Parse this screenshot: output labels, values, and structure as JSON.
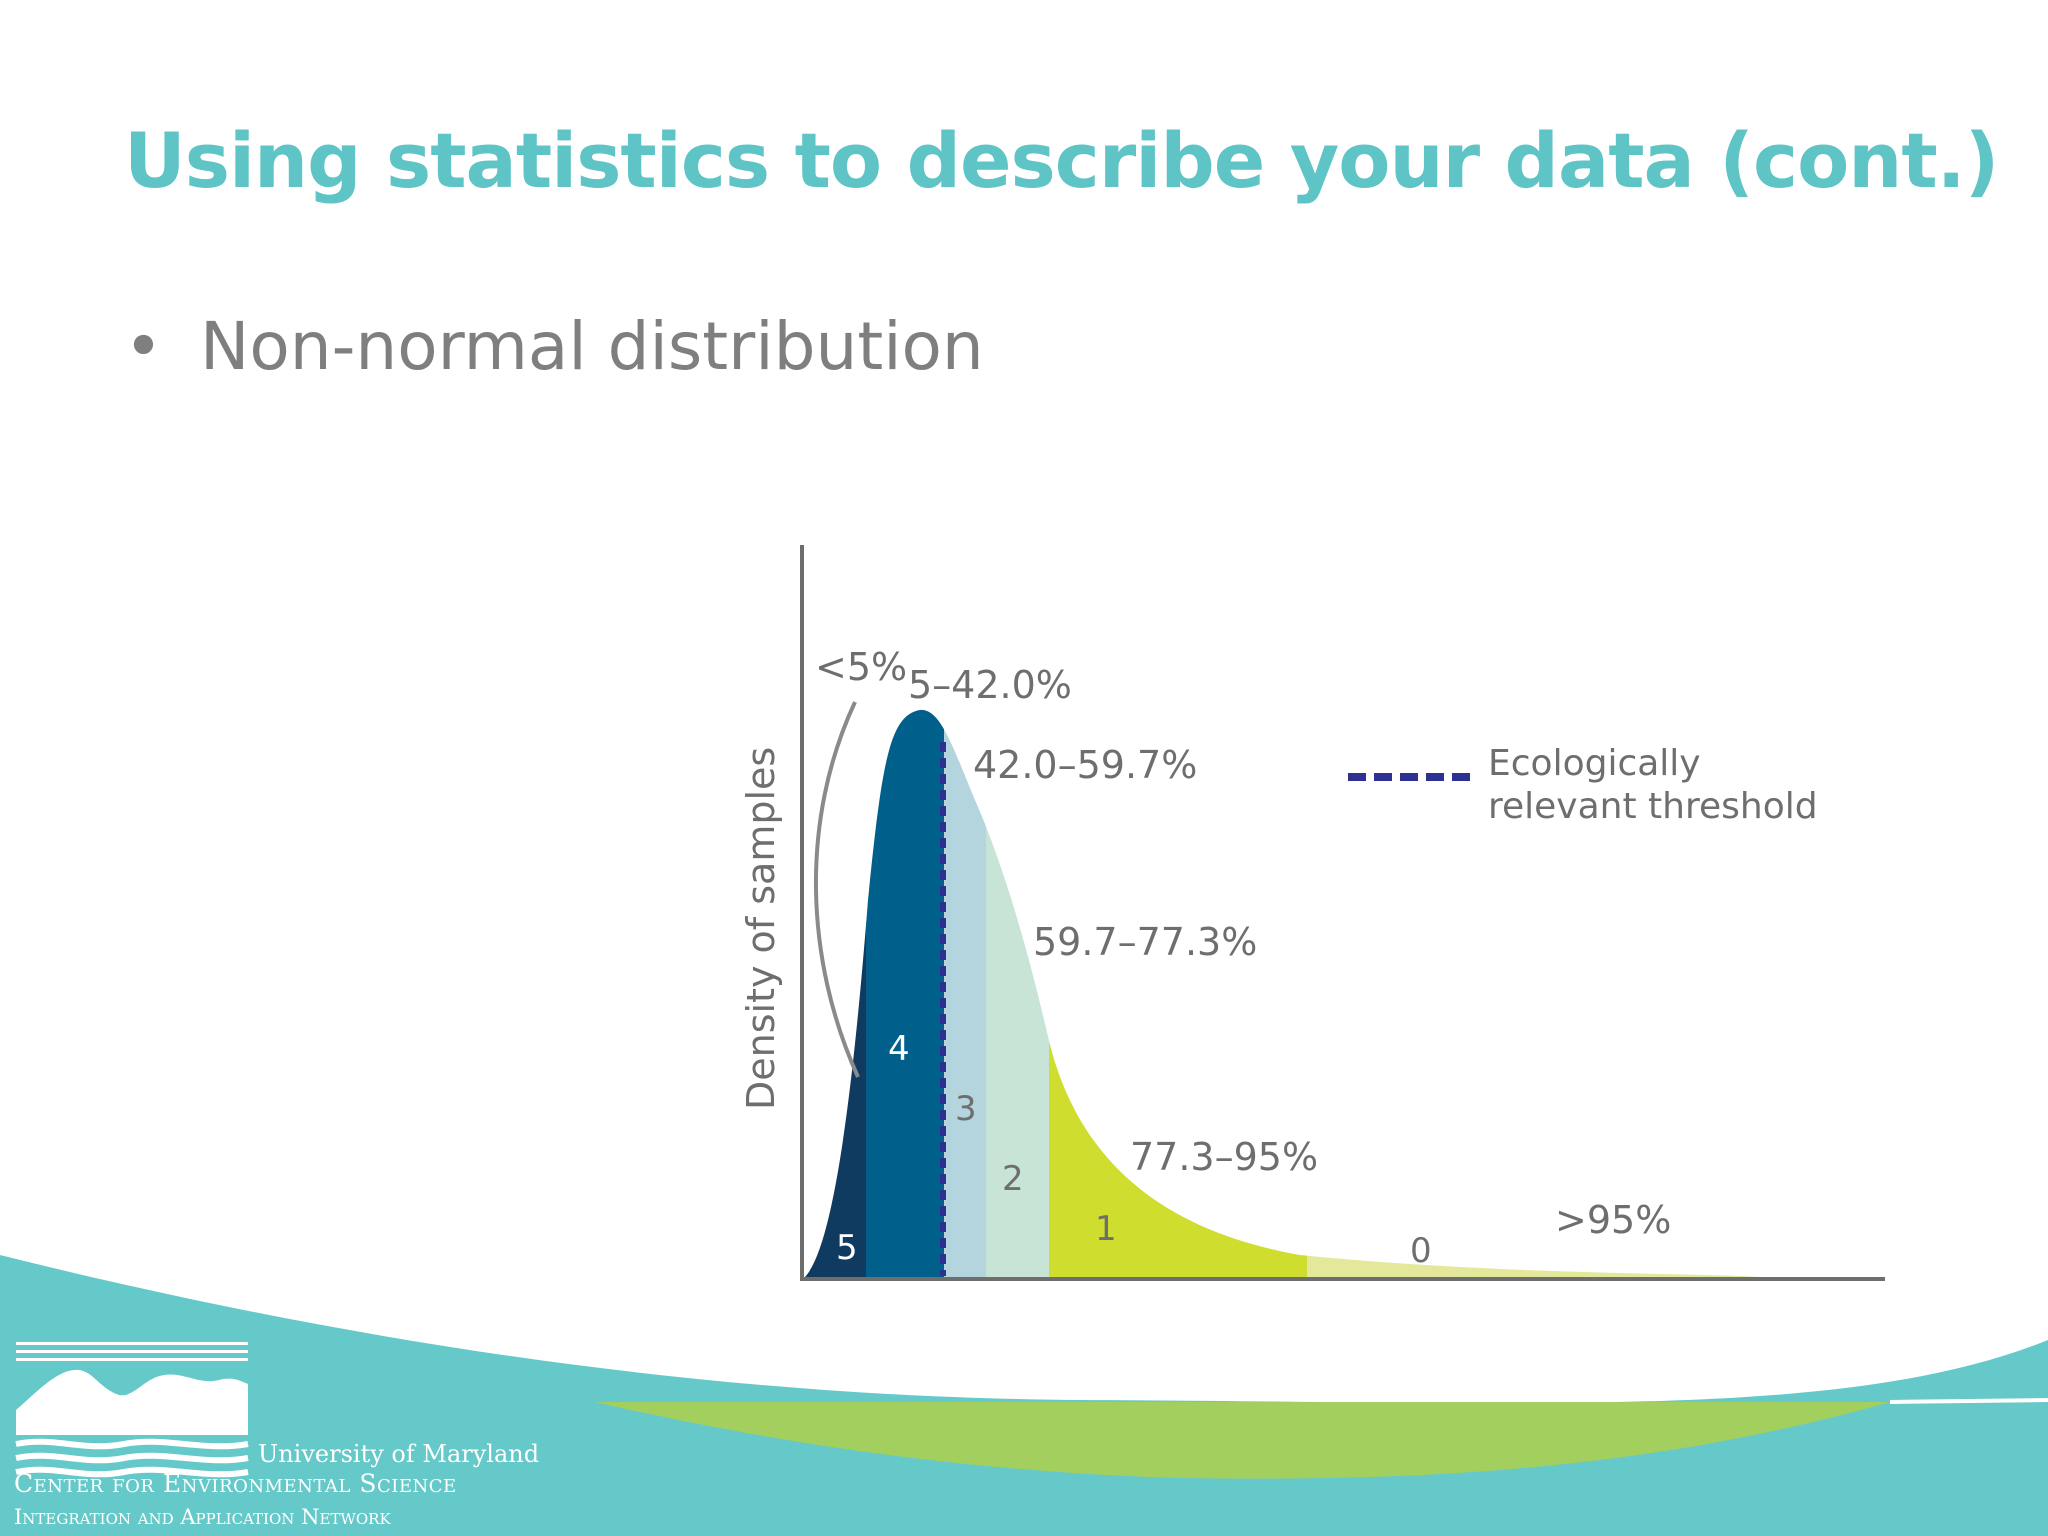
{
  "slide": {
    "title": "Using statistics to describe your data (cont.)",
    "bullet_marker": "•",
    "bullet": "Non-normal distribution"
  },
  "diagram": {
    "y_axis_label": "Density of samples",
    "range_labels": [
      "<5%",
      "5–42.0%",
      "42.0–59.7%",
      "59.7–77.3%",
      "77.3–95%",
      ">95%"
    ],
    "score_labels": [
      "5",
      "4",
      "3",
      "2",
      "1",
      "0"
    ],
    "legend": {
      "line_1": "Ecologically",
      "line_2": "relevant threshold",
      "line_color": "#2e3192"
    },
    "band_colors": [
      "#0f3b61",
      "#005f8b",
      "#b4d4de",
      "#c8e4d6",
      "#cedd2e",
      "#e4e89a"
    ]
  },
  "logo": {
    "line_1": "University of Maryland",
    "line_2": "Center for Environmental Science",
    "line_3": "Integration and Application Network"
  },
  "colors": {
    "title": "#5fc4c6",
    "teal": "#66c9c9",
    "green": "#a3cf5e",
    "text_gray": "#7f7f7f"
  }
}
